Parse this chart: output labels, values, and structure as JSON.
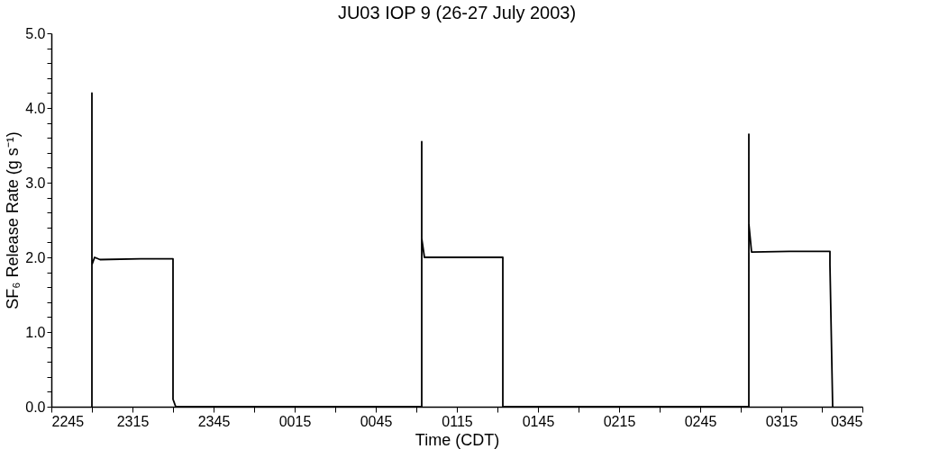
{
  "chart_data": {
    "type": "line",
    "title": "JU03 IOP 9 (26-27 July 2003)",
    "xlabel": "Time (CDT)",
    "ylabel": "SF₆ Release Rate (g s⁻¹)",
    "series": [
      {
        "color": "#000000",
        "x": [
          "2003-07-26T23:00",
          "2003-07-26T23:00",
          "2003-07-26T23:00",
          "2003-07-26T23:00",
          "2003-07-26T23:00",
          "2003-07-26T23:01",
          "2003-07-26T23:03",
          "2003-07-26T23:18",
          "2003-07-26T23:30",
          "2003-07-26T23:30",
          "2003-07-26T23:31",
          "2003-07-27T01:02",
          "2003-07-27T01:02",
          "2003-07-27T01:02",
          "2003-07-27T01:02",
          "2003-07-27T01:03",
          "2003-07-27T01:18",
          "2003-07-27T01:32",
          "2003-07-27T01:32",
          "2003-07-27T03:03",
          "2003-07-27T03:03",
          "2003-07-27T03:03",
          "2003-07-27T03:03",
          "2003-07-27T03:03",
          "2003-07-27T03:03",
          "2003-07-27T03:04",
          "2003-07-27T03:18",
          "2003-07-27T03:33",
          "2003-07-27T03:33",
          "2003-07-27T03:34"
        ],
        "values": [
          0,
          4.2,
          1.4,
          3.7,
          1.9,
          2.0,
          1.97,
          1.98,
          1.98,
          0.1,
          0,
          0,
          3.55,
          1.9,
          2.25,
          2.0,
          2.0,
          2.0,
          0,
          0,
          3.65,
          1.2,
          3.35,
          1.8,
          2.45,
          2.07,
          2.08,
          2.08,
          1.9,
          0
        ]
      }
    ],
    "xlim": [
      "2003-07-26T22:45",
      "2003-07-27T03:45"
    ],
    "xticks": [
      {
        "value": "2003-07-26T22:45",
        "label": "2245"
      },
      {
        "value": "2003-07-26T23:00",
        "label": null
      },
      {
        "value": "2003-07-26T23:15",
        "label": "2315"
      },
      {
        "value": "2003-07-26T23:30",
        "label": null
      },
      {
        "value": "2003-07-26T23:45",
        "label": "2345"
      },
      {
        "value": "2003-07-27T00:00",
        "label": null
      },
      {
        "value": "2003-07-27T00:15",
        "label": "0015"
      },
      {
        "value": "2003-07-27T00:30",
        "label": null
      },
      {
        "value": "2003-07-27T00:45",
        "label": "0045"
      },
      {
        "value": "2003-07-27T01:00",
        "label": null
      },
      {
        "value": "2003-07-27T01:15",
        "label": "0115"
      },
      {
        "value": "2003-07-27T01:30",
        "label": null
      },
      {
        "value": "2003-07-27T01:45",
        "label": "0145"
      },
      {
        "value": "2003-07-27T02:00",
        "label": null
      },
      {
        "value": "2003-07-27T02:15",
        "label": "0215"
      },
      {
        "value": "2003-07-27T02:30",
        "label": null
      },
      {
        "value": "2003-07-27T02:45",
        "label": "0245"
      },
      {
        "value": "2003-07-27T03:00",
        "label": null
      },
      {
        "value": "2003-07-27T03:15",
        "label": "0315"
      },
      {
        "value": "2003-07-27T03:30",
        "label": null
      },
      {
        "value": "2003-07-27T03:45",
        "label": "0345"
      }
    ],
    "ylim": [
      0,
      5
    ],
    "yticks": [
      {
        "value": 0,
        "label": "0.0"
      },
      {
        "value": 0.2,
        "label": null
      },
      {
        "value": 0.4,
        "label": null
      },
      {
        "value": 0.6,
        "label": null
      },
      {
        "value": 0.8,
        "label": null
      },
      {
        "value": 1,
        "label": "1.0"
      },
      {
        "value": 1.2,
        "label": null
      },
      {
        "value": 1.4,
        "label": null
      },
      {
        "value": 1.6,
        "label": null
      },
      {
        "value": 1.8,
        "label": null
      },
      {
        "value": 2,
        "label": "2.0"
      },
      {
        "value": 2.2,
        "label": null
      },
      {
        "value": 2.4,
        "label": null
      },
      {
        "value": 2.6,
        "label": null
      },
      {
        "value": 2.8,
        "label": null
      },
      {
        "value": 3,
        "label": "3.0"
      },
      {
        "value": 3.2,
        "label": null
      },
      {
        "value": 3.4,
        "label": null
      },
      {
        "value": 3.6,
        "label": null
      },
      {
        "value": 3.8,
        "label": null
      },
      {
        "value": 4,
        "label": "4.0"
      },
      {
        "value": 4.2,
        "label": null
      },
      {
        "value": 4.4,
        "label": null
      },
      {
        "value": 4.6,
        "label": null
      },
      {
        "value": 4.8,
        "label": null
      },
      {
        "value": 5,
        "label": "5.0"
      }
    ],
    "grid": false,
    "legend": false,
    "marker": "none",
    "line_style": "solid"
  }
}
